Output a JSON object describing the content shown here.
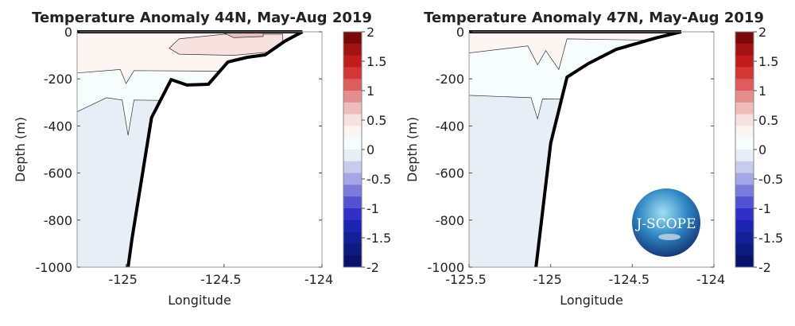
{
  "chart_data": [
    {
      "type": "heatmap",
      "title": "Temperature Anomaly 44N, May-Aug 2019",
      "xlabel": "Longitude",
      "ylabel": "Depth (m)",
      "xlim": [
        -125.25,
        -124
      ],
      "ylim": [
        -1000,
        0
      ],
      "xticks": [
        -125,
        -124.5,
        -124
      ],
      "xtick_labels": [
        "-125",
        "-124.5",
        "-124"
      ],
      "yticks": [
        0,
        -200,
        -400,
        -600,
        -800,
        -1000
      ],
      "ytick_labels": [
        "0",
        "-200",
        "-400",
        "-600",
        "-800",
        "-1000"
      ],
      "background_band": [
        -0.2,
        0
      ],
      "bands": [
        {
          "range": [
            0,
            0.2
          ],
          "polygon": [
            [
              -125.25,
              0
            ],
            [
              -124,
              0
            ],
            [
              -124,
              -300
            ],
            [
              -124.96,
              -290
            ],
            [
              -124.99,
              -440
            ],
            [
              -125.02,
              -290
            ],
            [
              -125.1,
              -280
            ],
            [
              -125.2,
              -320
            ],
            [
              -125.25,
              -340
            ]
          ]
        },
        {
          "range": [
            0.2,
            0.4
          ],
          "polygon": [
            [
              -125.25,
              0
            ],
            [
              -124,
              0
            ],
            [
              -124,
              -170
            ],
            [
              -124.96,
              -165
            ],
            [
              -125.0,
              -220
            ],
            [
              -125.03,
              -160
            ],
            [
              -125.25,
              -175
            ]
          ]
        },
        {
          "range": [
            0.4,
            0.6
          ],
          "polygon": [
            [
              -124.73,
              -30
            ],
            [
              -124.5,
              -10
            ],
            [
              -124.2,
              -10
            ],
            [
              -124.2,
              -80
            ],
            [
              -124.45,
              -100
            ],
            [
              -124.73,
              -95
            ],
            [
              -124.78,
              -70
            ]
          ]
        },
        {
          "range": [
            0.6,
            0.8
          ],
          "polygon": [
            [
              -124.5,
              -5
            ],
            [
              -124.3,
              -3
            ],
            [
              -124.3,
              -20
            ],
            [
              -124.45,
              -25
            ]
          ]
        }
      ],
      "bathymetry": [
        [
          -124.99,
          -1000
        ],
        [
          -124.97,
          -880
        ],
        [
          -124.87,
          -365
        ],
        [
          -124.77,
          -203
        ],
        [
          -124.69,
          -226
        ],
        [
          -124.58,
          -223
        ],
        [
          -124.48,
          -128
        ],
        [
          -124.38,
          -108
        ],
        [
          -124.29,
          -98
        ],
        [
          -124.19,
          -40
        ],
        [
          -124.1,
          0
        ]
      ]
    },
    {
      "type": "heatmap",
      "title": "Temperature Anomaly 47N, May-Aug 2019",
      "xlabel": "Longitude",
      "ylabel": "Depth (m)",
      "xlim": [
        -125.5,
        -124
      ],
      "ylim": [
        -1000,
        0
      ],
      "xticks": [
        -125.5,
        -125,
        -124.5,
        -124
      ],
      "xtick_labels": [
        "-125.5",
        "-125",
        "-124.5",
        "-124"
      ],
      "yticks": [
        0,
        -200,
        -400,
        -600,
        -800,
        -1000
      ],
      "ytick_labels": [
        "0",
        "-200",
        "-400",
        "-600",
        "-800",
        "-1000"
      ],
      "background_band": [
        -0.2,
        0
      ],
      "bands": [
        {
          "range": [
            0,
            0.2
          ],
          "polygon": [
            [
              -125.5,
              0
            ],
            [
              -124,
              0
            ],
            [
              -124,
              -290
            ],
            [
              -125.05,
              -285
            ],
            [
              -125.08,
              -370
            ],
            [
              -125.12,
              -280
            ],
            [
              -125.5,
              -270
            ]
          ]
        },
        {
          "range": [
            0.2,
            0.4
          ],
          "polygon": [
            [
              -125.5,
              0
            ],
            [
              -124,
              0
            ],
            [
              -124,
              -40
            ],
            [
              -124.9,
              -30
            ],
            [
              -124.95,
              -160
            ],
            [
              -125.03,
              -80
            ],
            [
              -125.08,
              -140
            ],
            [
              -125.14,
              -60
            ],
            [
              -125.5,
              -90
            ]
          ]
        }
      ],
      "bathymetry": [
        [
          -125.09,
          -1000
        ],
        [
          -125.0,
          -473
        ],
        [
          -124.9,
          -193
        ],
        [
          -124.77,
          -135
        ],
        [
          -124.6,
          -75
        ],
        [
          -124.35,
          -25
        ],
        [
          -124.2,
          0
        ]
      ]
    }
  ],
  "colorbar": {
    "ticks": [
      2,
      1.5,
      1,
      0.5,
      0,
      -0.5,
      -1,
      -1.5,
      -2
    ],
    "tick_labels": [
      "2",
      "1.5",
      "1",
      "0.5",
      "0",
      "-0.5",
      "-1",
      "-1.5",
      "-2"
    ],
    "range": [
      -2,
      2
    ],
    "colors_top_to_bottom": [
      "#7a0a0a",
      "#a31313",
      "#c01c1c",
      "#d23636",
      "#de5c5c",
      "#e68e8e",
      "#efbcbc",
      "#f7e2e0",
      "#fdf5f1",
      "#f6fdfd",
      "#e8eef6",
      "#c9cbee",
      "#a4a6e6",
      "#7a7cdc",
      "#5252d2",
      "#3030c8",
      "#1c24b2",
      "#122098",
      "#0c1a82",
      "#08126a"
    ]
  },
  "logo": {
    "text": "J-SCOPE"
  }
}
